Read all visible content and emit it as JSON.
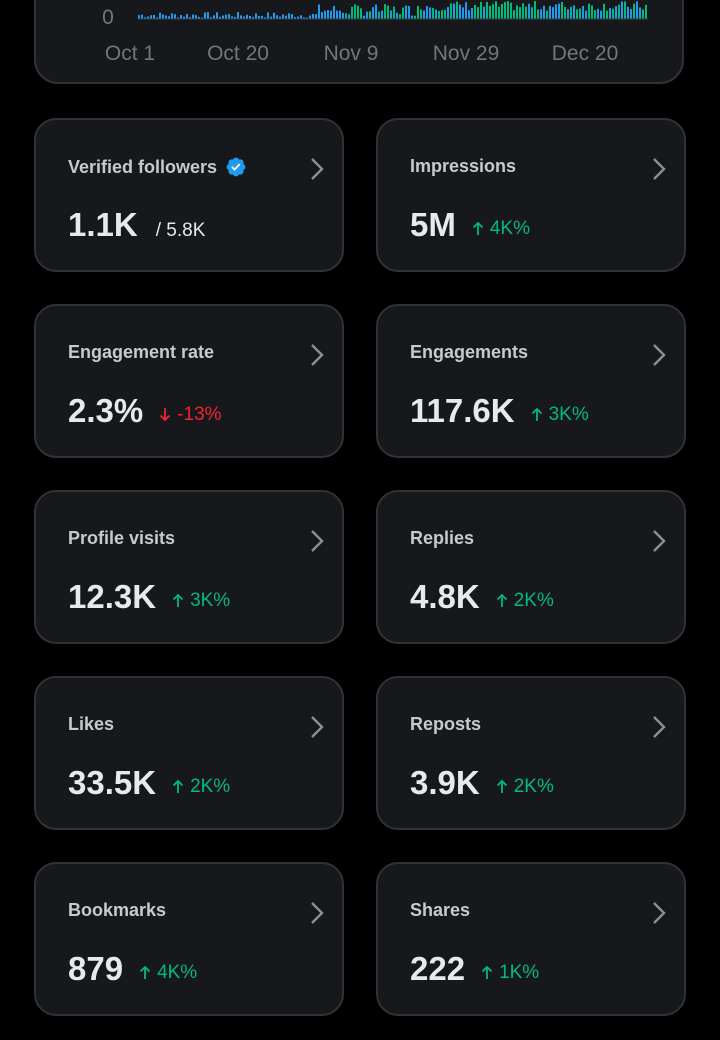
{
  "chart": {
    "y_tick_label": "0",
    "x_ticks": [
      "Oct 1",
      "Oct 20",
      "Nov 9",
      "Nov 29",
      "Dec 20"
    ],
    "bar_color": "#1d9bf0",
    "accent_bar_color": "#00ba7c"
  },
  "colors": {
    "positive": "#00ba7c",
    "negative": "#f4212e",
    "verified": "#1d9bf0"
  },
  "cards": [
    {
      "label": "Verified followers",
      "value": "1.1K",
      "sub": "/ 5.8K",
      "verified_icon": "verified-badge-icon"
    },
    {
      "label": "Impressions",
      "value": "5M",
      "change": "4K%",
      "direction": "up"
    },
    {
      "label": "Engagement rate",
      "value": "2.3%",
      "change": "-13%",
      "direction": "down"
    },
    {
      "label": "Engagements",
      "value": "117.6K",
      "change": "3K%",
      "direction": "up"
    },
    {
      "label": "Profile visits",
      "value": "12.3K",
      "change": "3K%",
      "direction": "up"
    },
    {
      "label": "Replies",
      "value": "4.8K",
      "change": "2K%",
      "direction": "up"
    },
    {
      "label": "Likes",
      "value": "33.5K",
      "change": "2K%",
      "direction": "up"
    },
    {
      "label": "Reposts",
      "value": "3.9K",
      "change": "2K%",
      "direction": "up"
    },
    {
      "label": "Bookmarks",
      "value": "879",
      "change": "4K%",
      "direction": "up"
    },
    {
      "label": "Shares",
      "value": "222",
      "change": "1K%",
      "direction": "up"
    }
  ]
}
